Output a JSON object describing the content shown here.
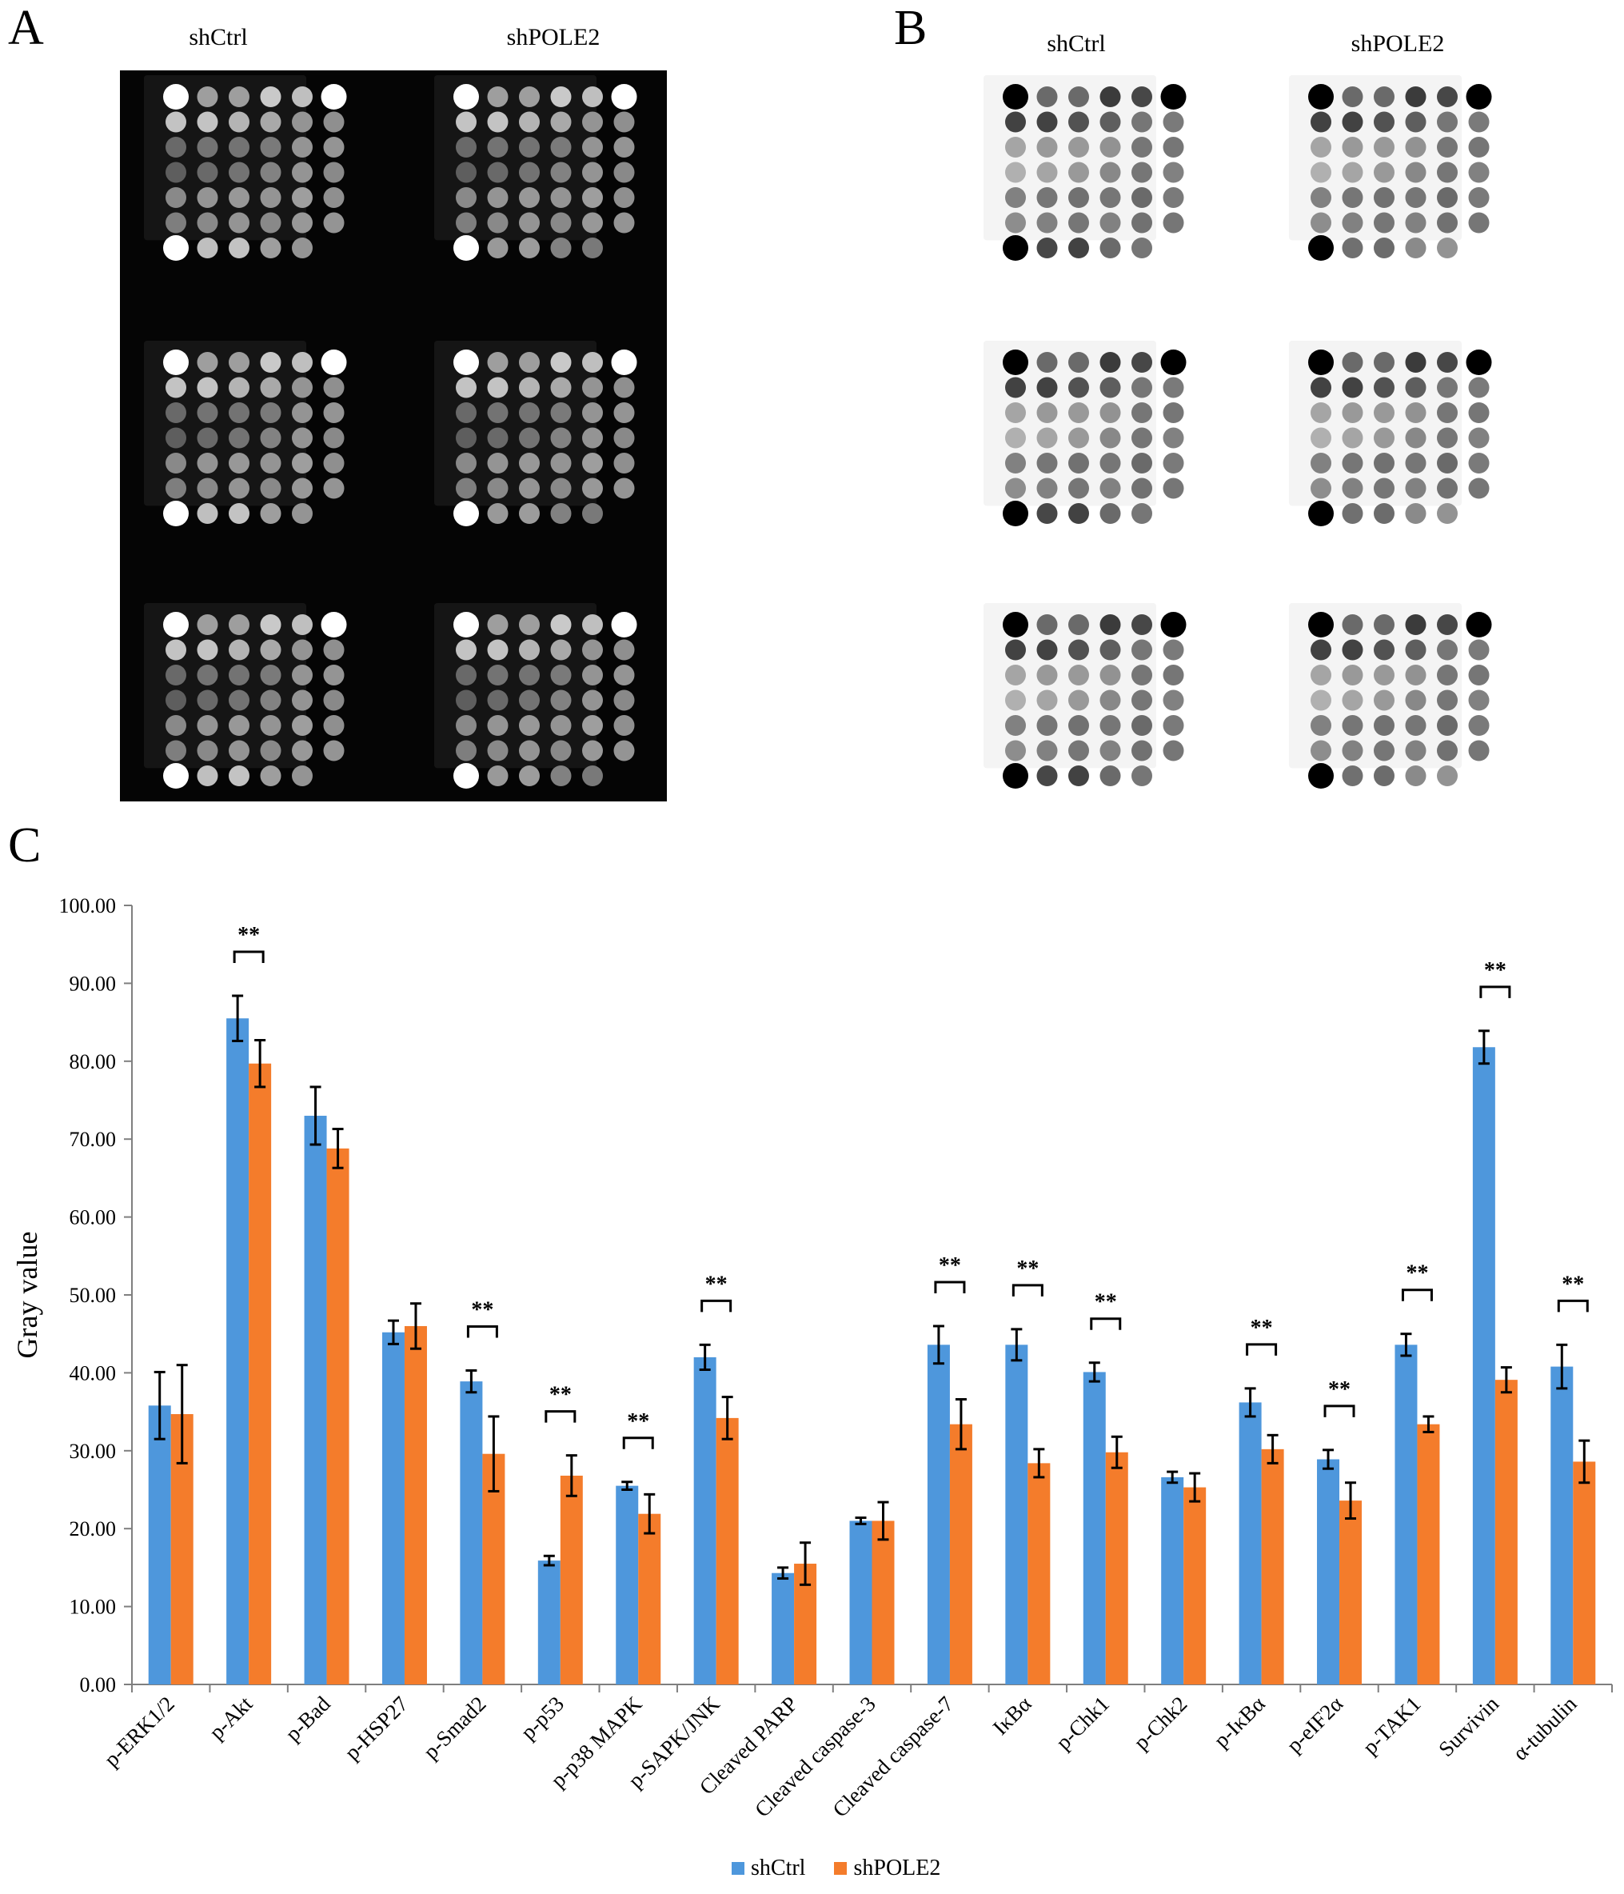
{
  "panels": {
    "a": {
      "letter": "A",
      "left_label": "shCtrl",
      "right_label": "shPOLE2"
    },
    "b": {
      "letter": "B",
      "left_label": "shCtrl",
      "right_label": "shPOLE2"
    },
    "c": {
      "letter": "C"
    }
  },
  "blot": {
    "rows": 7,
    "cols": 6,
    "last_row_spots": 5,
    "blocks": 3,
    "dark_bg": "#000000",
    "light_bg": "#ffffff"
  },
  "chart_data": {
    "type": "bar",
    "ylabel": "Gray value",
    "xlabel": "",
    "ylim": [
      0,
      100
    ],
    "yticks": [
      "0.00",
      "10.00",
      "20.00",
      "30.00",
      "40.00",
      "50.00",
      "60.00",
      "70.00",
      "80.00",
      "90.00",
      "100.00"
    ],
    "categories": [
      "p-ERK1/2",
      "p-Akt",
      "p-Bad",
      "p-HSP27",
      "p-Smad2",
      "p-p53",
      "p-p38 MAPK",
      "p-SAPK/JNK",
      "Cleaved PARP",
      "Cleaved caspase-3",
      "Cleaved caspase-7",
      "IκBα",
      "p-Chk1",
      "p-Chk2",
      "p-IκBα",
      "p-eIF2α",
      "p-TAK1",
      "Survivin",
      "α-tubulin"
    ],
    "series": [
      {
        "name": "shCtrl",
        "color": "#4e97dc",
        "values": [
          35.8,
          85.5,
          73.0,
          45.2,
          38.9,
          15.9,
          25.5,
          42.0,
          14.3,
          21.0,
          43.6,
          43.6,
          40.1,
          26.6,
          36.2,
          28.9,
          43.6,
          81.8,
          40.8
        ],
        "errors": [
          4.3,
          2.9,
          3.7,
          1.5,
          1.4,
          0.6,
          0.5,
          1.6,
          0.7,
          0.4,
          2.4,
          2.0,
          1.2,
          0.7,
          1.8,
          1.2,
          1.4,
          2.1,
          2.8
        ]
      },
      {
        "name": "shPOLE2",
        "color": "#f47c2b",
        "values": [
          34.7,
          79.7,
          68.8,
          46.0,
          29.6,
          26.8,
          21.9,
          34.2,
          15.5,
          21.0,
          33.4,
          28.4,
          29.8,
          25.3,
          30.2,
          23.6,
          33.4,
          39.1,
          28.6
        ],
        "errors": [
          6.3,
          3.0,
          2.5,
          2.9,
          4.8,
          2.6,
          2.5,
          2.7,
          2.7,
          2.4,
          3.2,
          1.8,
          2.0,
          1.8,
          1.8,
          2.3,
          1.0,
          1.6,
          2.7
        ]
      }
    ],
    "significance": {
      "label": "**",
      "indices": [
        1,
        4,
        5,
        6,
        7,
        10,
        11,
        12,
        14,
        15,
        16,
        17,
        18
      ]
    }
  }
}
